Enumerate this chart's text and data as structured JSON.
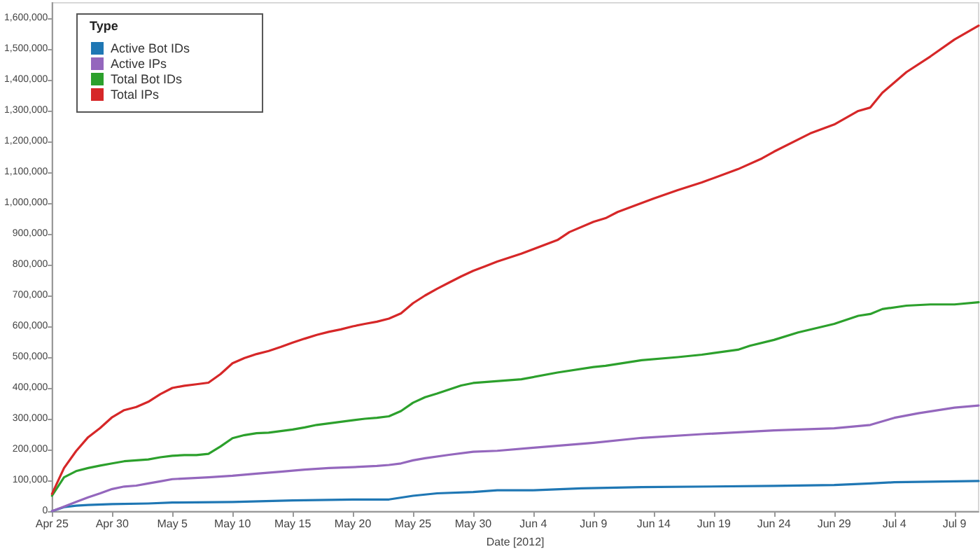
{
  "chart_data": {
    "type": "line",
    "xlabel": "Date [2012]",
    "legend_title": "Type",
    "legend": "top left",
    "grid": false,
    "marker": "none",
    "line_style": "solid",
    "xlim": [
      "2012-04-25",
      "2012-07-11"
    ],
    "xticks": [
      {
        "value": "2012-04-25",
        "label": "Apr 25"
      },
      {
        "value": "2012-04-30",
        "label": "Apr 30"
      },
      {
        "value": "2012-05-05",
        "label": "May 5"
      },
      {
        "value": "2012-05-10",
        "label": "May 10"
      },
      {
        "value": "2012-05-15",
        "label": "May 15"
      },
      {
        "value": "2012-05-20",
        "label": "May 20"
      },
      {
        "value": "2012-05-25",
        "label": "May 25"
      },
      {
        "value": "2012-05-30",
        "label": "May 30"
      },
      {
        "value": "2012-06-04",
        "label": "Jun 4"
      },
      {
        "value": "2012-06-09",
        "label": "Jun 9"
      },
      {
        "value": "2012-06-14",
        "label": "Jun 14"
      },
      {
        "value": "2012-06-19",
        "label": "Jun 19"
      },
      {
        "value": "2012-06-24",
        "label": "Jun 24"
      },
      {
        "value": "2012-06-29",
        "label": "Jun 29"
      },
      {
        "value": "2012-07-04",
        "label": "Jul 4"
      },
      {
        "value": "2012-07-09",
        "label": "Jul 9"
      }
    ],
    "ylim": [
      0,
      1650000
    ],
    "yticks": [
      {
        "value": 0,
        "label": "0"
      },
      {
        "value": 100000,
        "label": "100,000"
      },
      {
        "value": 200000,
        "label": "200,000"
      },
      {
        "value": 300000,
        "label": "300,000"
      },
      {
        "value": 400000,
        "label": "400,000"
      },
      {
        "value": 500000,
        "label": "500,000"
      },
      {
        "value": 600000,
        "label": "600,000"
      },
      {
        "value": 700000,
        "label": "700,000"
      },
      {
        "value": 800000,
        "label": "800,000"
      },
      {
        "value": 900000,
        "label": "900,000"
      },
      {
        "value": 1000000,
        "label": "1,000,000"
      },
      {
        "value": 1100000,
        "label": "1,100,000"
      },
      {
        "value": 1200000,
        "label": "1,200,000"
      },
      {
        "value": 1300000,
        "label": "1,300,000"
      },
      {
        "value": 1400000,
        "label": "1,400,000"
      },
      {
        "value": 1500000,
        "label": "1,500,000"
      },
      {
        "value": 1600000,
        "label": "1,600,000"
      }
    ],
    "series": [
      {
        "name": "Active Bot IDs",
        "color": "#1f77b4",
        "x": [
          "2012-04-25",
          "2012-04-26",
          "2012-04-27",
          "2012-04-28",
          "2012-04-30",
          "2012-05-03",
          "2012-05-05",
          "2012-05-10",
          "2012-05-15",
          "2012-05-20",
          "2012-05-23",
          "2012-05-25",
          "2012-05-27",
          "2012-05-30",
          "2012-06-01",
          "2012-06-04",
          "2012-06-08",
          "2012-06-13",
          "2012-06-24",
          "2012-06-29",
          "2012-07-02",
          "2012-07-04",
          "2012-07-11"
        ],
        "values": [
          0,
          13000,
          18000,
          20000,
          23000,
          25000,
          28000,
          30000,
          35000,
          38000,
          38000,
          50000,
          58000,
          62000,
          68000,
          68000,
          74000,
          78000,
          82000,
          85000,
          90000,
          94000,
          98000
        ]
      },
      {
        "name": "Active IPs",
        "color": "#9467bd",
        "x": [
          "2012-04-25",
          "2012-04-26",
          "2012-04-27",
          "2012-04-28",
          "2012-04-29",
          "2012-04-30",
          "2012-05-01",
          "2012-05-02",
          "2012-05-03",
          "2012-05-04",
          "2012-05-05",
          "2012-05-06",
          "2012-05-08",
          "2012-05-10",
          "2012-05-12",
          "2012-05-14",
          "2012-05-16",
          "2012-05-18",
          "2012-05-20",
          "2012-05-22",
          "2012-05-23",
          "2012-05-24",
          "2012-05-25",
          "2012-05-26",
          "2012-05-28",
          "2012-05-30",
          "2012-06-01",
          "2012-06-04",
          "2012-06-09",
          "2012-06-13",
          "2012-06-18",
          "2012-06-24",
          "2012-06-29",
          "2012-07-02",
          "2012-07-04",
          "2012-07-06",
          "2012-07-09",
          "2012-07-11"
        ],
        "values": [
          0,
          15000,
          30000,
          45000,
          58000,
          72000,
          80000,
          83000,
          90000,
          97000,
          104000,
          106000,
          110000,
          115000,
          122000,
          128000,
          135000,
          140000,
          143000,
          147000,
          150000,
          155000,
          165000,
          172000,
          183000,
          193000,
          196000,
          206000,
          222000,
          238000,
          250000,
          262000,
          269000,
          280000,
          303000,
          318000,
          336000,
          343000
        ]
      },
      {
        "name": "Total Bot IDs",
        "color": "#2ca02c",
        "x": [
          "2012-04-25",
          "2012-04-26",
          "2012-04-27",
          "2012-04-28",
          "2012-04-29",
          "2012-04-30",
          "2012-05-01",
          "2012-05-02",
          "2012-05-03",
          "2012-05-04",
          "2012-05-05",
          "2012-05-06",
          "2012-05-07",
          "2012-05-08",
          "2012-05-09",
          "2012-05-10",
          "2012-05-11",
          "2012-05-12",
          "2012-05-13",
          "2012-05-14",
          "2012-05-15",
          "2012-05-16",
          "2012-05-17",
          "2012-05-18",
          "2012-05-19",
          "2012-05-20",
          "2012-05-21",
          "2012-05-22",
          "2012-05-23",
          "2012-05-24",
          "2012-05-25",
          "2012-05-26",
          "2012-05-27",
          "2012-05-28",
          "2012-05-29",
          "2012-05-30",
          "2012-06-03",
          "2012-06-06",
          "2012-06-09",
          "2012-06-10",
          "2012-06-13",
          "2012-06-16",
          "2012-06-18",
          "2012-06-21",
          "2012-06-22",
          "2012-06-24",
          "2012-06-26",
          "2012-06-29",
          "2012-07-01",
          "2012-07-02",
          "2012-07-03",
          "2012-07-05",
          "2012-07-07",
          "2012-07-09",
          "2012-07-11"
        ],
        "values": [
          50000,
          110000,
          130000,
          140000,
          148000,
          155000,
          162000,
          165000,
          168000,
          175000,
          180000,
          182000,
          182000,
          186000,
          210000,
          237000,
          247000,
          253000,
          255000,
          260000,
          265000,
          272000,
          280000,
          285000,
          290000,
          295000,
          300000,
          303000,
          308000,
          325000,
          352000,
          370000,
          382000,
          395000,
          408000,
          416000,
          428000,
          450000,
          468000,
          472000,
          490000,
          500000,
          508000,
          524000,
          537000,
          556000,
          580000,
          608000,
          634000,
          640000,
          656000,
          667000,
          671000,
          671000,
          678000
        ]
      },
      {
        "name": "Total IPs",
        "color": "#d62728",
        "x": [
          "2012-04-25",
          "2012-04-26",
          "2012-04-27",
          "2012-04-28",
          "2012-04-29",
          "2012-04-30",
          "2012-05-01",
          "2012-05-02",
          "2012-05-03",
          "2012-05-04",
          "2012-05-05",
          "2012-05-06",
          "2012-05-07",
          "2012-05-08",
          "2012-05-09",
          "2012-05-10",
          "2012-05-11",
          "2012-05-12",
          "2012-05-13",
          "2012-05-14",
          "2012-05-15",
          "2012-05-16",
          "2012-05-17",
          "2012-05-18",
          "2012-05-19",
          "2012-05-20",
          "2012-05-21",
          "2012-05-22",
          "2012-05-23",
          "2012-05-24",
          "2012-05-25",
          "2012-05-26",
          "2012-05-27",
          "2012-05-28",
          "2012-05-29",
          "2012-05-30",
          "2012-05-31",
          "2012-06-01",
          "2012-06-03",
          "2012-06-06",
          "2012-06-07",
          "2012-06-09",
          "2012-06-10",
          "2012-06-11",
          "2012-06-14",
          "2012-06-16",
          "2012-06-18",
          "2012-06-21",
          "2012-06-23",
          "2012-06-24",
          "2012-06-27",
          "2012-06-29",
          "2012-07-01",
          "2012-07-02",
          "2012-07-03",
          "2012-07-05",
          "2012-07-07",
          "2012-07-09",
          "2012-07-11"
        ],
        "values": [
          56000,
          140000,
          195000,
          240000,
          270000,
          305000,
          328000,
          338000,
          355000,
          380000,
          400000,
          407000,
          412000,
          417000,
          445000,
          480000,
          497000,
          510000,
          520000,
          533000,
          547000,
          560000,
          572000,
          582000,
          590000,
          600000,
          608000,
          615000,
          625000,
          642000,
          675000,
          700000,
          722000,
          742000,
          762000,
          780000,
          795000,
          810000,
          836000,
          880000,
          906000,
          939000,
          951000,
          971000,
          1015000,
          1042000,
          1067000,
          1110000,
          1145000,
          1167000,
          1226000,
          1255000,
          1299000,
          1310000,
          1358000,
          1425000,
          1476000,
          1531000,
          1576000
        ]
      }
    ]
  }
}
